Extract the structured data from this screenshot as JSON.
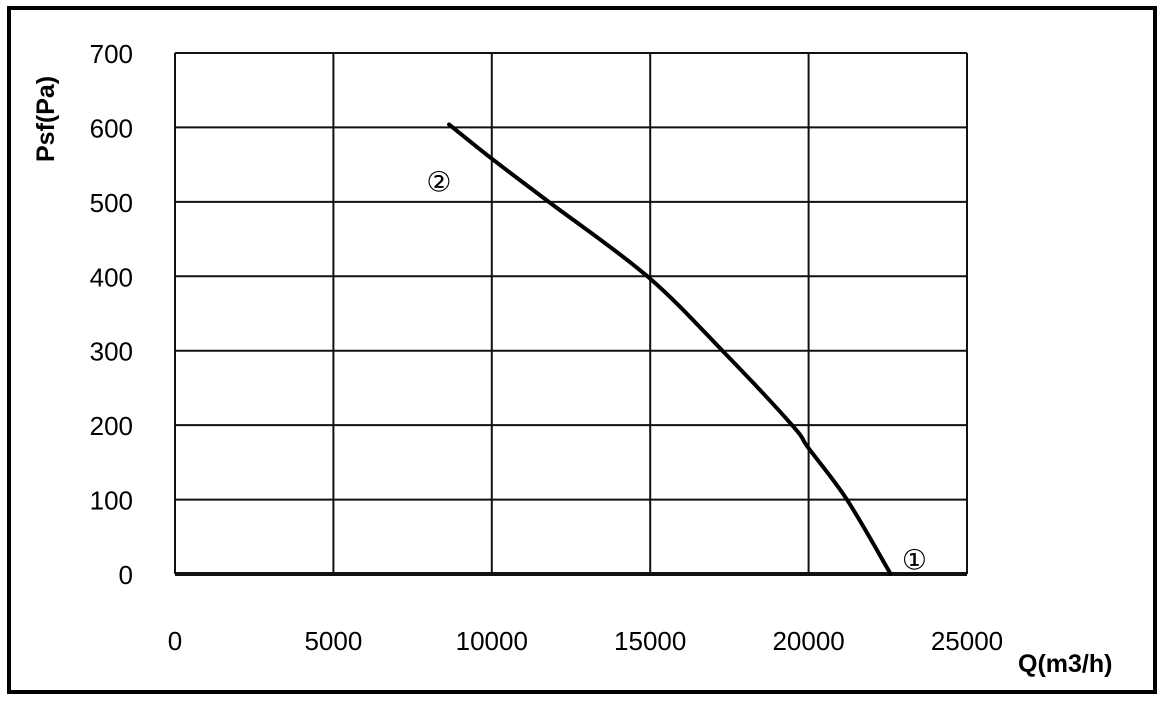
{
  "chart_data": {
    "type": "line",
    "title": "",
    "xlabel": "Q(m3/h)",
    "ylabel": "Psf(Pa)",
    "xlim": [
      0,
      25000
    ],
    "ylim": [
      0,
      700
    ],
    "xticks": [
      0,
      5000,
      10000,
      15000,
      20000,
      25000
    ],
    "yticks": [
      0,
      100,
      200,
      300,
      400,
      500,
      600,
      700
    ],
    "grid": true,
    "series": [
      {
        "x": [
          8650,
          10000,
          11800,
          14910,
          17280,
          19480,
          20000,
          21210,
          22590
        ],
        "y": [
          604,
          558,
          500,
          400,
          300,
          200,
          169,
          100,
          0
        ],
        "color": "#000000"
      }
    ],
    "annotations": [
      {
        "text": "②",
        "x": 8330,
        "y": 526
      },
      {
        "text": "①",
        "x": 23340,
        "y": 18
      }
    ]
  }
}
